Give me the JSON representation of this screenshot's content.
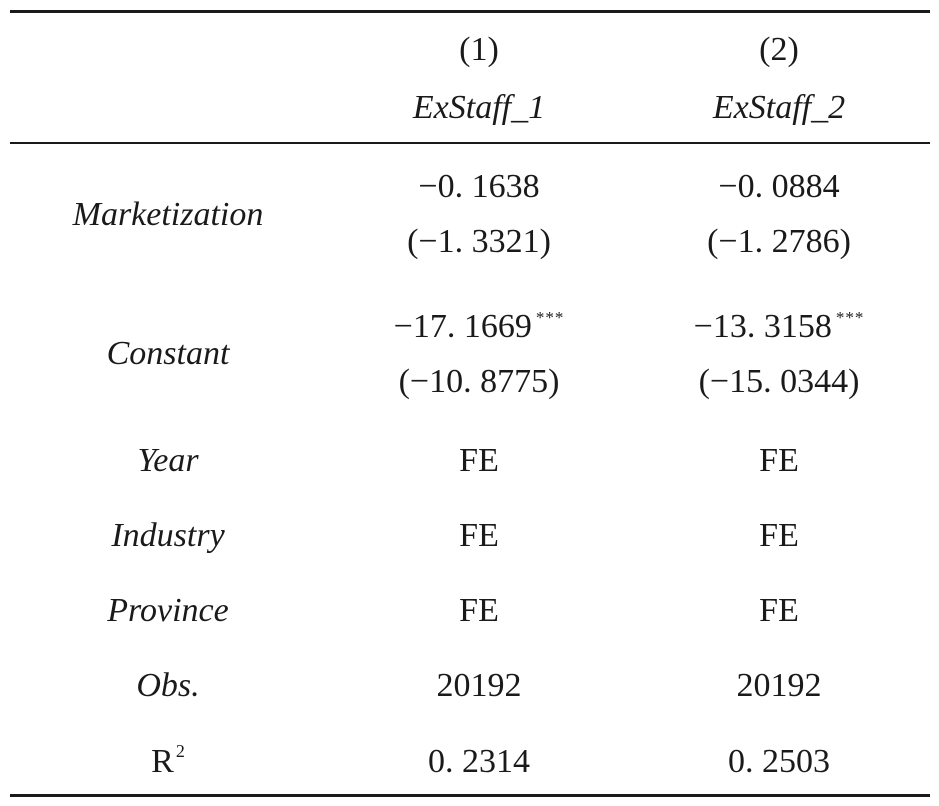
{
  "header": {
    "col1_number": "(1)",
    "col2_number": "(2)",
    "col1_name": "ExStaff_1",
    "col2_name": "ExStaff_2"
  },
  "rows": {
    "marketization": {
      "label": "Marketization",
      "col1_coef": "−0. 1638",
      "col1_t": "(−1. 3321)",
      "col2_coef": "−0. 0884",
      "col2_t": "(−1. 2786)"
    },
    "constant": {
      "label": "Constant",
      "col1_coef": "−17. 1669",
      "col1_stars": "***",
      "col1_t": "(−10. 8775)",
      "col2_coef": "−13. 3158",
      "col2_stars": "***",
      "col2_t": "(−15. 0344)"
    },
    "year": {
      "label": "Year",
      "col1": "FE",
      "col2": "FE"
    },
    "industry": {
      "label": "Industry",
      "col1": "FE",
      "col2": "FE"
    },
    "province": {
      "label": "Province",
      "col1": "FE",
      "col2": "FE"
    },
    "obs": {
      "label": "Obs.",
      "col1": "20192",
      "col2": "20192"
    },
    "r2": {
      "label": "R",
      "label_sup": "2",
      "col1": "0. 2314",
      "col2": "0. 2503"
    }
  }
}
